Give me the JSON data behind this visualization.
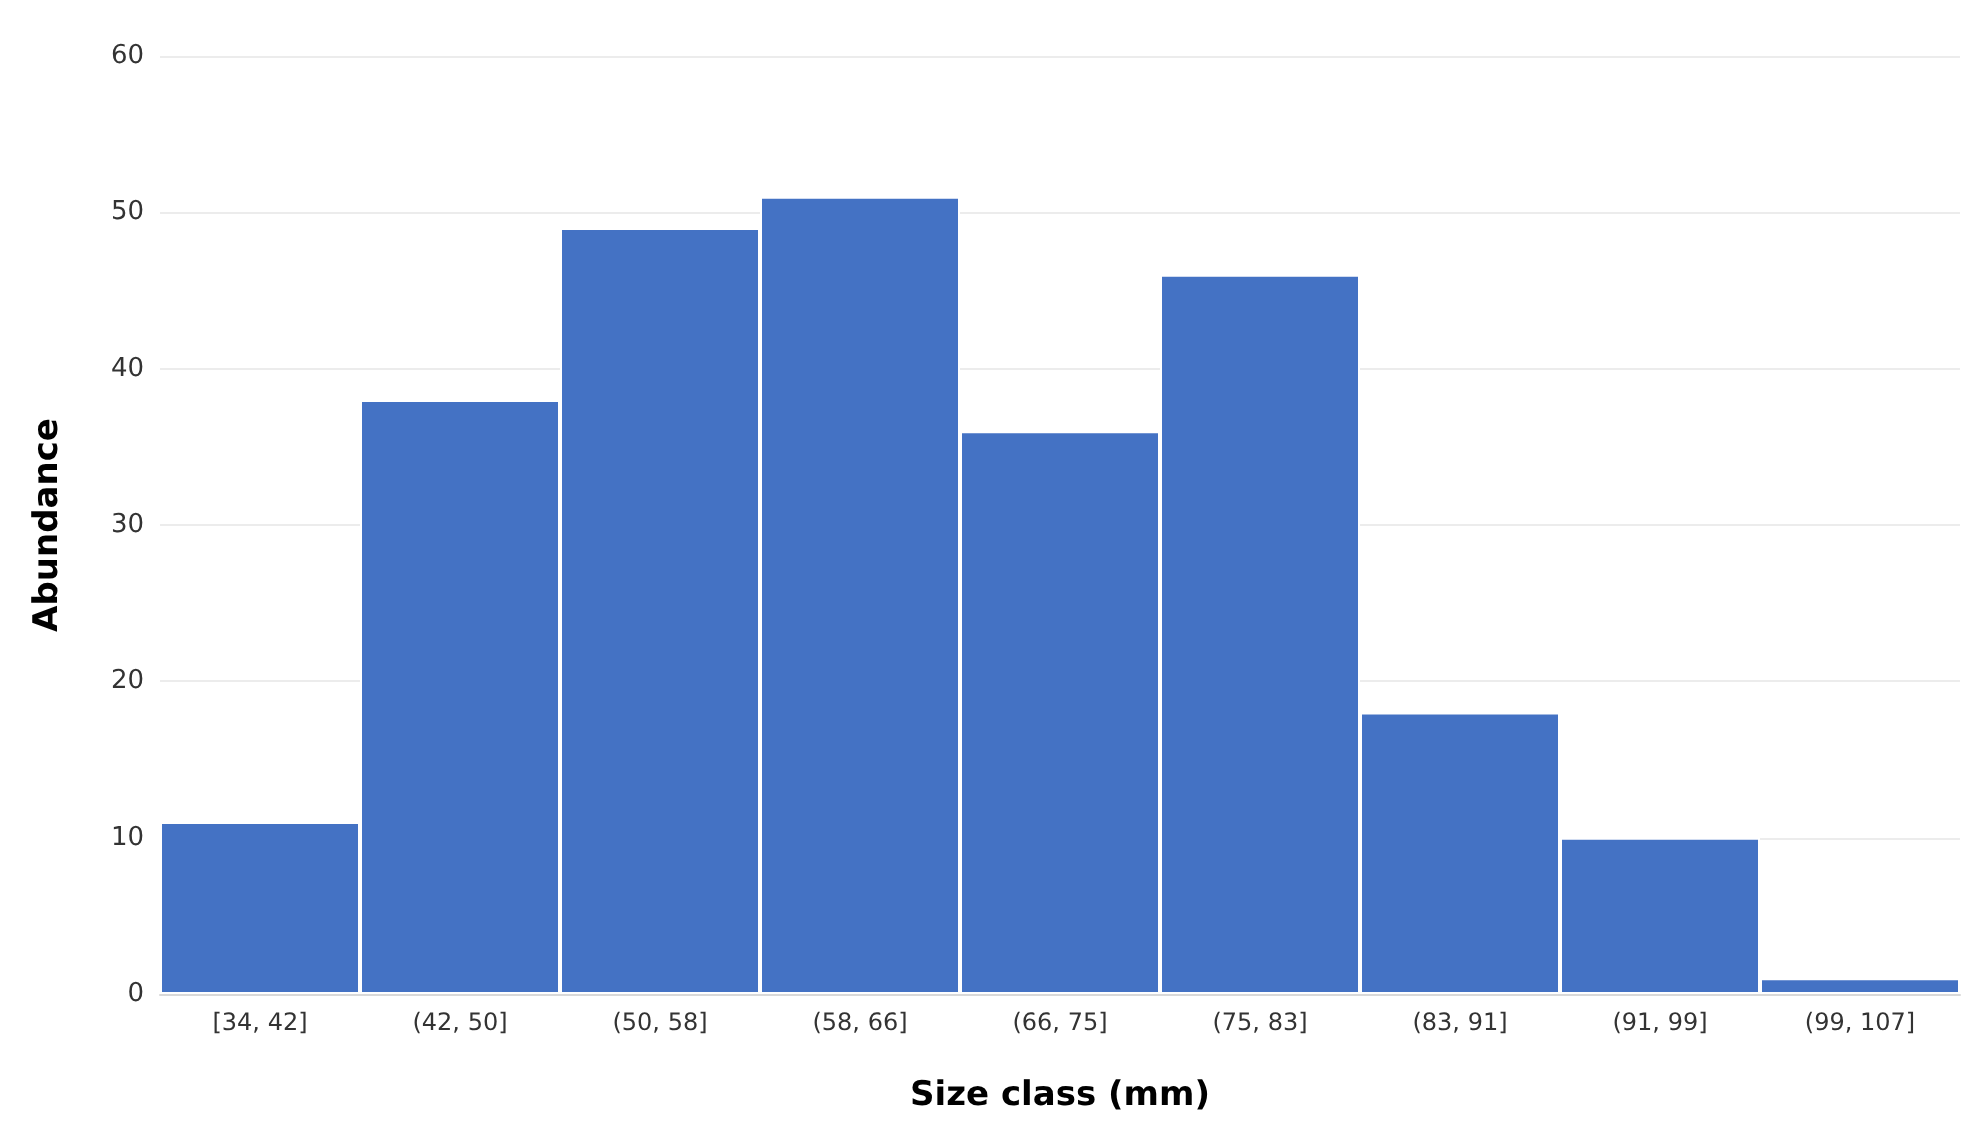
{
  "chart_data": {
    "type": "bar",
    "xlabel": "Size class (mm)",
    "ylabel": "Abundance",
    "categories": [
      "[34, 42]",
      "(42, 50]",
      "(50, 58]",
      "(58, 66]",
      "(66, 75]",
      "(75, 83]",
      "(83, 91]",
      "(91, 99]",
      "(99, 107]"
    ],
    "values": [
      11,
      38,
      49,
      51,
      36,
      46,
      18,
      10,
      1
    ],
    "color": "#4472c4",
    "ylim": [
      0,
      60
    ],
    "yticks": [
      0,
      10,
      20,
      30,
      40,
      50,
      60
    ],
    "grid": "y"
  }
}
